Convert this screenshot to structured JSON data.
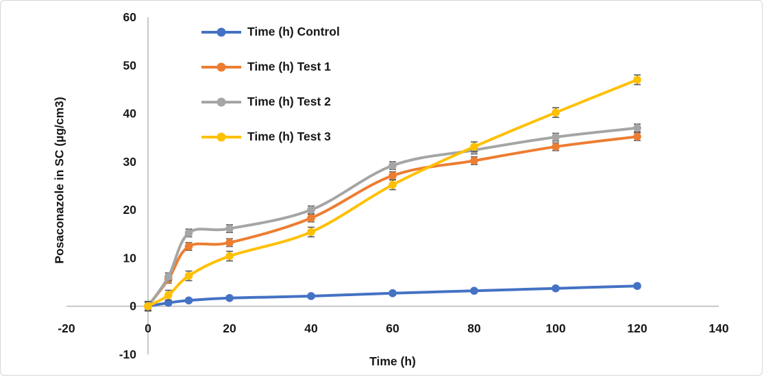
{
  "frame": {
    "background_color": "#ffffff",
    "border_color": "#d6d6d6"
  },
  "chart_data": {
    "type": "line",
    "title": "",
    "xlabel": "Time (h)",
    "ylabel": "Posaconazole in SC (µg/cm3)",
    "x": [
      0,
      5,
      10,
      20,
      40,
      60,
      80,
      100,
      120
    ],
    "series": [
      {
        "name": "Time (h) Control",
        "color": "#4472C4",
        "values": [
          0,
          0.7,
          1.2,
          1.7,
          2.1,
          2.7,
          3.2,
          3.7,
          4.2
        ],
        "error": 0.4
      },
      {
        "name": "Time (h) Test 1",
        "color": "#ED7D31",
        "values": [
          0,
          5.6,
          12.4,
          13.2,
          18.3,
          27.1,
          30.2,
          33.1,
          35.2
        ],
        "error": 0.8
      },
      {
        "name": "Time (h) Test 2",
        "color": "#A5A5A5",
        "values": [
          0,
          6.1,
          15.2,
          16.1,
          20.0,
          29.2,
          32.4,
          35.1,
          37.0
        ],
        "error": 0.8
      },
      {
        "name": "Time (h) Test 3",
        "color": "#FFC000",
        "values": [
          0,
          2.3,
          6.3,
          10.4,
          15.4,
          25.2,
          33.1,
          40.2,
          47.0
        ],
        "error": 1.0
      }
    ],
    "xlim": [
      -20,
      140
    ],
    "ylim": [
      -10,
      60
    ],
    "x_ticks": [
      -20,
      0,
      20,
      40,
      60,
      80,
      100,
      120,
      140
    ],
    "y_ticks": [
      -10,
      0,
      10,
      20,
      30,
      40,
      50,
      60
    ],
    "grid": false,
    "smoothed_lines": true,
    "legend_position": "top-left-inside",
    "error_bars": true,
    "error_bar_color": "#595959",
    "axis_line_color": "#bfbfbf",
    "text_color": "#171717"
  }
}
